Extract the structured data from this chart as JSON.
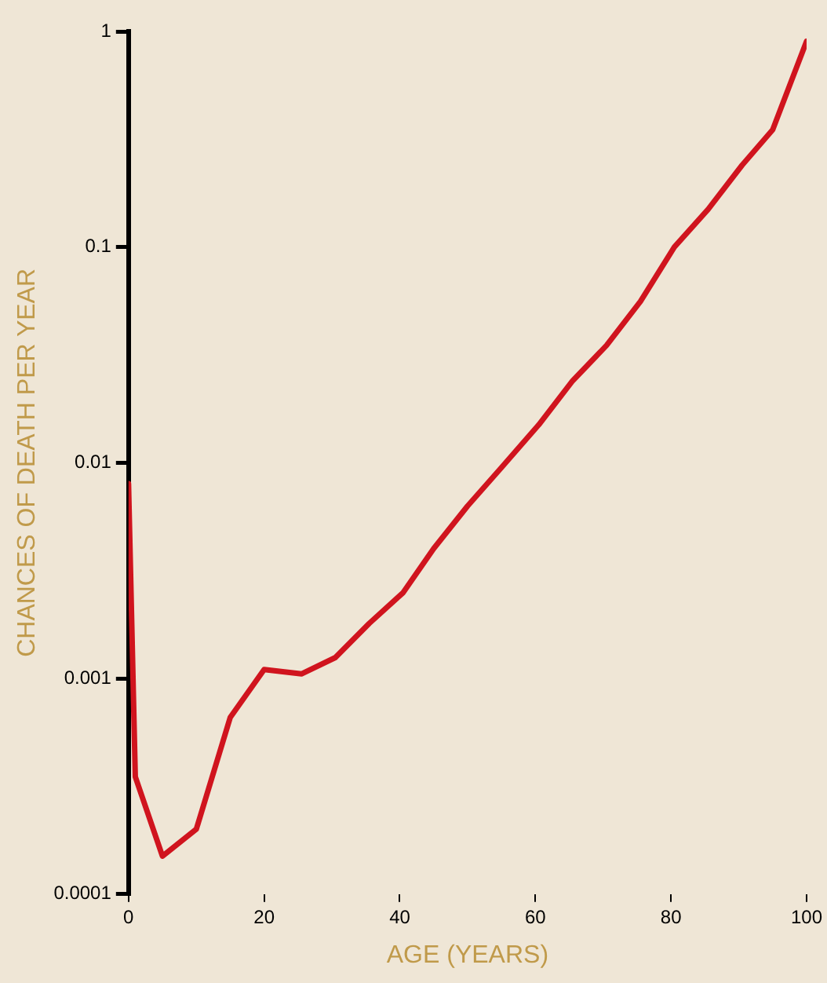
{
  "chart_data": {
    "type": "line",
    "xlabel": "AGE (YEARS)",
    "ylabel": "CHANCES OF DEATH PER YEAR",
    "log": "y",
    "grid": false,
    "legend": false,
    "marker": "none",
    "line_style": "solid",
    "xlim": [
      0,
      100
    ],
    "xticks": [
      0,
      20,
      40,
      60,
      80,
      100
    ],
    "ylim": [
      0.0001,
      1
    ],
    "yticks": [
      0.0001,
      0.001,
      0.01,
      0.1,
      1
    ],
    "series": [
      {
        "color": "#d0141e",
        "x": [
          0,
          1,
          5,
          10,
          15,
          20,
          25.5,
          30.5,
          35.5,
          40.5,
          45,
          50,
          55,
          60.5,
          65.5,
          70.5,
          75.5,
          80.5,
          85.5,
          90.5,
          95,
          100
        ],
        "values": [
          0.008,
          0.00035,
          0.00015,
          0.0002,
          0.00066,
          0.0011,
          0.00105,
          0.00125,
          0.0018,
          0.0025,
          0.004,
          0.0063,
          0.0095,
          0.015,
          0.024,
          0.035,
          0.056,
          0.1,
          0.15,
          0.24,
          0.35,
          0.9
        ]
      }
    ]
  }
}
